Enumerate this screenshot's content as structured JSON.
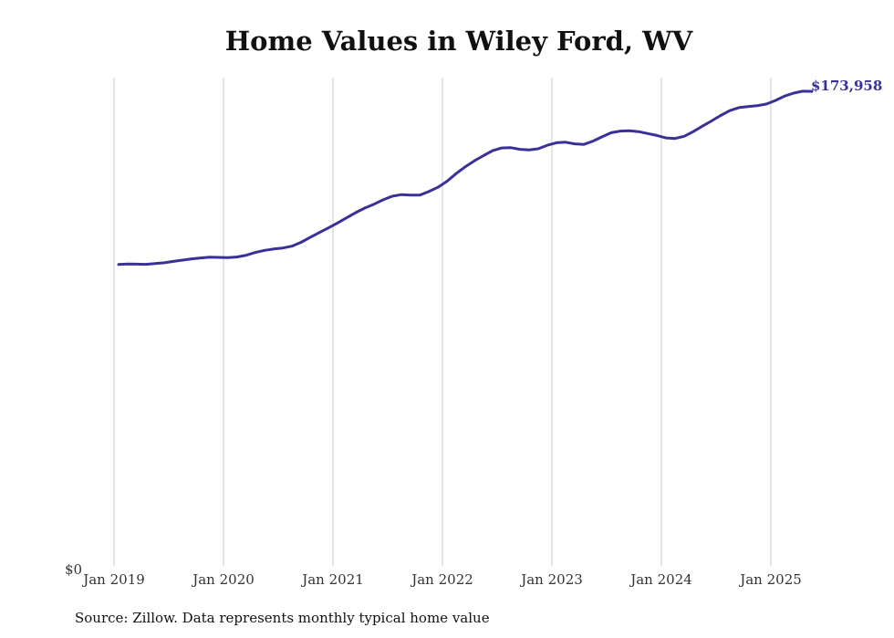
{
  "chart_data": {
    "type": "line",
    "title": "Home Values in Wiley Ford, WV",
    "xlabel": "",
    "ylabel": "",
    "x_ticks": [
      "Jan 2019",
      "Jan 2020",
      "Jan 2021",
      "Jan 2022",
      "Jan 2023",
      "Jan 2024",
      "Jan 2025"
    ],
    "y_ticks": [
      "$0"
    ],
    "ylim": [
      0,
      179000
    ],
    "grid": "vertical",
    "line_color": "#3a3198",
    "end_label": "$173,958",
    "series": [
      {
        "values": [
          [
            2019.0417,
            110500
          ],
          [
            2019.125,
            110650
          ],
          [
            2019.2083,
            110600
          ],
          [
            2019.2917,
            110550
          ],
          [
            2019.375,
            110800
          ],
          [
            2019.4583,
            111100
          ],
          [
            2019.5417,
            111600
          ],
          [
            2019.625,
            112100
          ],
          [
            2019.7083,
            112550
          ],
          [
            2019.7917,
            112900
          ],
          [
            2019.875,
            113150
          ],
          [
            2019.9583,
            113100
          ],
          [
            2020.0417,
            113000
          ],
          [
            2020.125,
            113250
          ],
          [
            2020.2083,
            113900
          ],
          [
            2020.2917,
            114900
          ],
          [
            2020.375,
            115650
          ],
          [
            2020.4583,
            116150
          ],
          [
            2020.5417,
            116550
          ],
          [
            2020.625,
            117200
          ],
          [
            2020.7083,
            118600
          ],
          [
            2020.7917,
            120400
          ],
          [
            2020.875,
            122200
          ],
          [
            2020.9583,
            123900
          ],
          [
            2021.0417,
            125700
          ],
          [
            2021.125,
            127600
          ],
          [
            2021.2083,
            129500
          ],
          [
            2021.2917,
            131200
          ],
          [
            2021.375,
            132600
          ],
          [
            2021.4583,
            134200
          ],
          [
            2021.5417,
            135500
          ],
          [
            2021.625,
            136100
          ],
          [
            2021.7083,
            135900
          ],
          [
            2021.7917,
            135900
          ],
          [
            2021.875,
            137200
          ],
          [
            2021.9583,
            138800
          ],
          [
            2022.0417,
            141000
          ],
          [
            2022.125,
            143800
          ],
          [
            2022.2083,
            146300
          ],
          [
            2022.2917,
            148500
          ],
          [
            2022.375,
            150400
          ],
          [
            2022.4583,
            152200
          ],
          [
            2022.5417,
            153200
          ],
          [
            2022.625,
            153300
          ],
          [
            2022.7083,
            152700
          ],
          [
            2022.7917,
            152500
          ],
          [
            2022.875,
            152900
          ],
          [
            2022.9583,
            154200
          ],
          [
            2023.0417,
            155100
          ],
          [
            2023.125,
            155300
          ],
          [
            2023.2083,
            154700
          ],
          [
            2023.2917,
            154500
          ],
          [
            2023.375,
            155700
          ],
          [
            2023.4583,
            157300
          ],
          [
            2023.5417,
            158800
          ],
          [
            2023.625,
            159400
          ],
          [
            2023.7083,
            159500
          ],
          [
            2023.7917,
            159200
          ],
          [
            2023.875,
            158500
          ],
          [
            2023.9583,
            157800
          ],
          [
            2024.0417,
            156900
          ],
          [
            2024.125,
            156700
          ],
          [
            2024.2083,
            157500
          ],
          [
            2024.2917,
            159200
          ],
          [
            2024.375,
            161200
          ],
          [
            2024.4583,
            163100
          ],
          [
            2024.5417,
            165100
          ],
          [
            2024.625,
            166900
          ],
          [
            2024.7083,
            168000
          ],
          [
            2024.7917,
            168400
          ],
          [
            2024.875,
            168700
          ],
          [
            2024.9583,
            169300
          ],
          [
            2025.0417,
            170600
          ],
          [
            2025.125,
            172200
          ],
          [
            2025.2083,
            173300
          ],
          [
            2025.2917,
            174000
          ],
          [
            2025.375,
            173958
          ]
        ]
      }
    ],
    "source": "Source: Zillow. Data represents monthly typical home value"
  }
}
